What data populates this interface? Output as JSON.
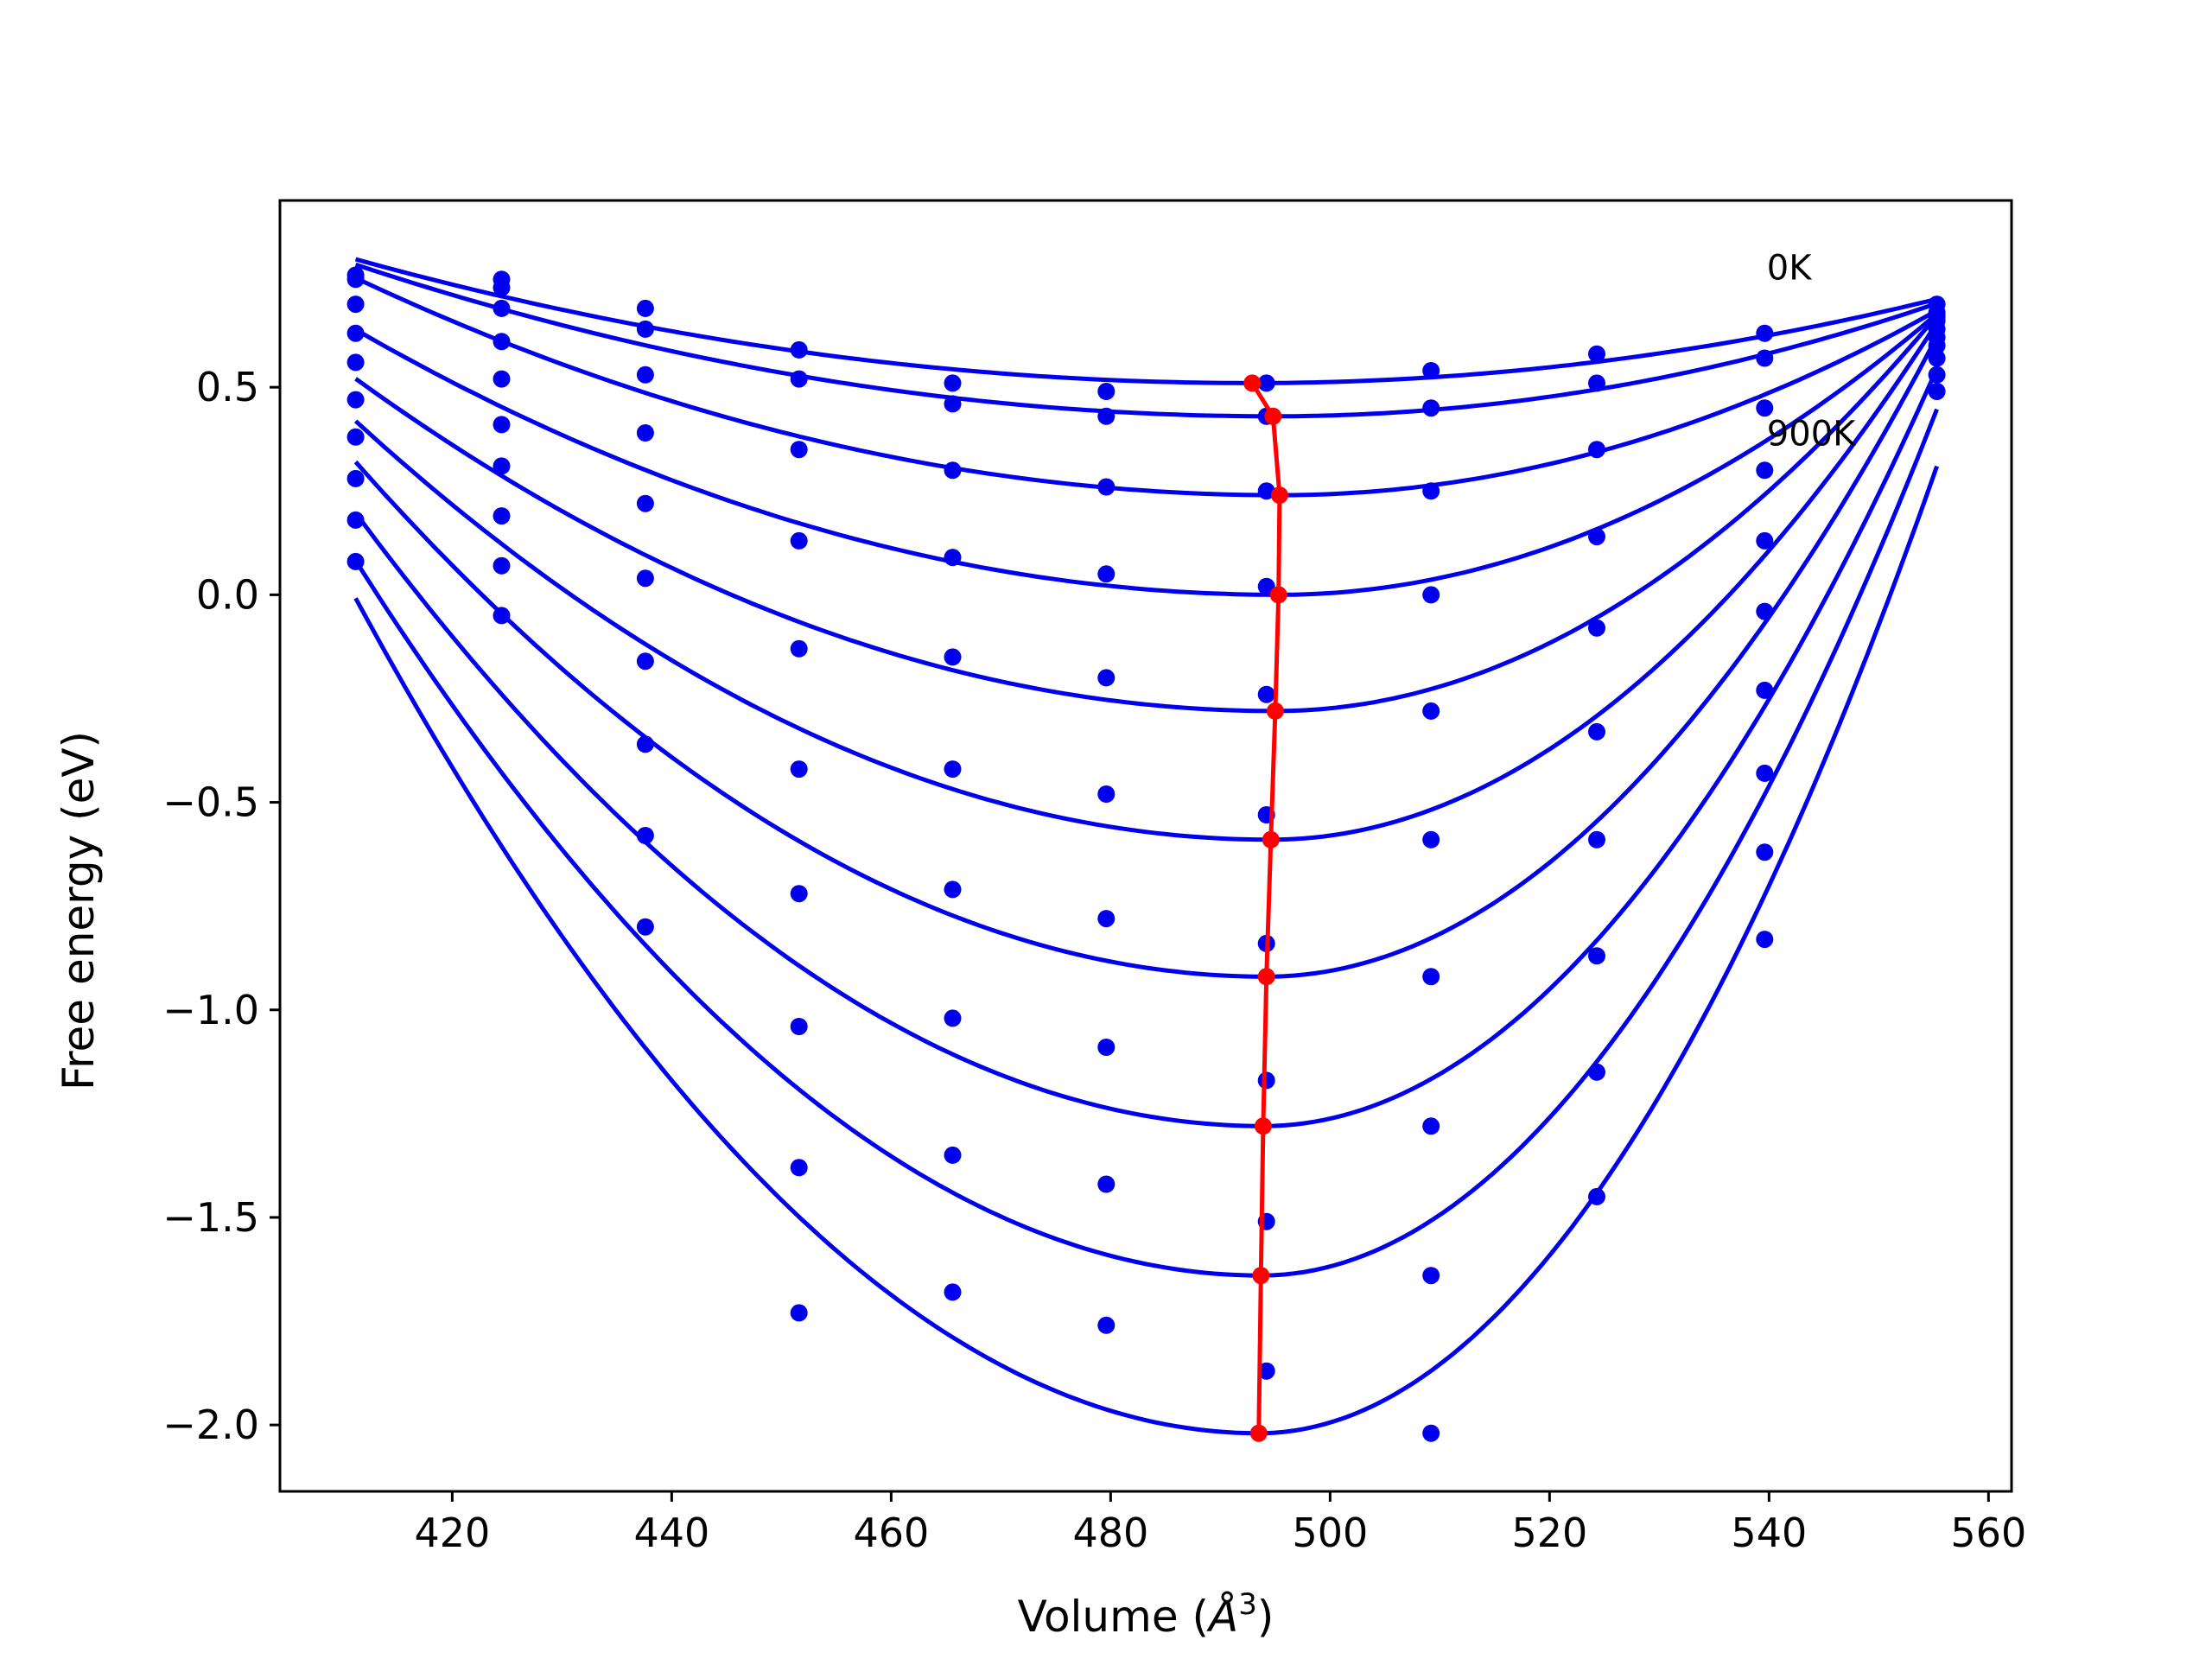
{
  "chart_data": {
    "type": "scatter",
    "title": "",
    "xlabel": "Volume (",
    "xlabel_unit": "Å",
    "xlabel_exp": "3",
    "xlabel_close": ")",
    "ylabel": "Free energy (eV)",
    "xlim": [
      404.3,
      562.1
    ],
    "ylim": [
      -2.16,
      0.95
    ],
    "xticks": [
      420,
      440,
      460,
      480,
      500,
      520,
      540,
      560
    ],
    "xtick_labels": [
      "420",
      "440",
      "460",
      "480",
      "500",
      "520",
      "540",
      "560"
    ],
    "yticks": [
      0.5,
      0.0,
      -0.5,
      -1.0,
      -1.5,
      -2.0
    ],
    "ytick_labels": [
      "0.5",
      "0.0",
      "−0.5",
      "−1.0",
      "−1.5",
      "−2.0"
    ],
    "grid": false,
    "colors": {
      "fit": "#0000ee",
      "points": "#0000ee",
      "minimum_path": "#ff0000",
      "frame": "#000000"
    },
    "annotations": [
      {
        "text": "0K",
        "x": 539.8,
        "y": 0.76
      },
      {
        "text": "900K",
        "x": 539.8,
        "y": 0.36
      }
    ],
    "x_points": [
      411.2,
      424.5,
      437.6,
      451.6,
      465.6,
      479.6,
      494.2,
      509.2,
      524.3,
      539.6,
      555.3
    ],
    "curves": [
      {
        "points_y": [
          0.77,
          0.76,
          0.69,
          0.59,
          0.51,
          0.49,
          0.51,
          0.54,
          0.58,
          0.63,
          0.7
        ],
        "fit": {
          "vmin": 492.9,
          "emin": 0.51,
          "a_left": 4.47e-05,
          "a_right": 5.2e-05
        }
      },
      {
        "points_y": [
          0.76,
          0.74,
          0.64,
          0.52,
          0.46,
          0.43,
          0.43,
          0.45,
          0.51,
          0.57,
          0.68
        ],
        "fit": {
          "vmin": 494.8,
          "emin": 0.43,
          "a_left": 5.23e-05,
          "a_right": 7.43e-05
        }
      },
      {
        "points_y": [
          0.7,
          0.69,
          0.53,
          0.35,
          0.3,
          0.26,
          0.25,
          0.25,
          0.35,
          0.45,
          0.67
        ],
        "fit": {
          "vmin": 495.4,
          "emin": 0.24,
          "a_left": 7.38e-05,
          "a_right": 0.000124
        }
      },
      {
        "points_y": [
          0.63,
          0.61,
          0.39,
          0.13,
          0.09,
          0.05,
          0.02,
          0.0,
          0.14,
          0.3,
          0.66
        ],
        "fit": {
          "vmin": 495.3,
          "emin": 0.0,
          "a_left": 9.03e-05,
          "a_right": 0.000188
        }
      },
      {
        "points_y": [
          0.56,
          0.52,
          0.22,
          -0.13,
          -0.15,
          -0.2,
          -0.24,
          -0.28,
          -0.08,
          0.13,
          0.64
        ],
        "fit": {
          "vmin": 495.0,
          "emin": -0.28,
          "a_left": 0.000114,
          "a_right": 0.000262
        }
      },
      {
        "points_y": [
          0.47,
          0.41,
          0.04,
          -0.42,
          -0.42,
          -0.48,
          -0.53,
          -0.59,
          -0.33,
          -0.04,
          0.62
        ],
        "fit": {
          "vmin": 494.6,
          "emin": -0.59,
          "a_left": 0.000145,
          "a_right": 0.000338
        }
      },
      {
        "points_y": [
          0.38,
          0.31,
          -0.16,
          -0.72,
          -0.71,
          -0.78,
          -0.84,
          -0.92,
          -0.59,
          -0.23,
          0.6
        ],
        "fit": {
          "vmin": 494.2,
          "emin": -0.92,
          "a_left": 0.00018,
          "a_right": 0.000413
        }
      },
      {
        "points_y": [
          0.28,
          0.19,
          -0.36,
          -1.04,
          -1.02,
          -1.09,
          -1.17,
          -1.28,
          -0.87,
          -0.43,
          0.57
        ],
        "fit": {
          "vmin": 493.9,
          "emin": -1.28,
          "a_left": 0.000216,
          "a_right": 0.000484
        }
      },
      {
        "points_y": [
          0.18,
          0.07,
          -0.58,
          -1.38,
          -1.35,
          -1.42,
          -1.51,
          -1.64,
          -1.15,
          -0.62,
          0.53
        ],
        "fit": {
          "vmin": 493.7,
          "emin": -1.64,
          "a_left": 0.000253,
          "a_right": 0.00055
        }
      },
      {
        "points_y": [
          0.08,
          -0.05,
          -0.8,
          -1.73,
          -1.68,
          -1.76,
          -1.87,
          -2.02,
          -1.45,
          -0.83,
          0.49
        ],
        "fit": {
          "vmin": 493.5,
          "emin": -2.02,
          "a_left": 0.000297,
          "a_right": 0.00061
        }
      }
    ],
    "minimum_path": {
      "x": [
        492.9,
        494.8,
        495.4,
        495.3,
        495.0,
        494.6,
        494.2,
        493.9,
        493.7,
        493.5
      ],
      "y": [
        0.51,
        0.43,
        0.24,
        0.0,
        -0.28,
        -0.59,
        -0.92,
        -1.28,
        -1.64,
        -2.02
      ]
    }
  }
}
